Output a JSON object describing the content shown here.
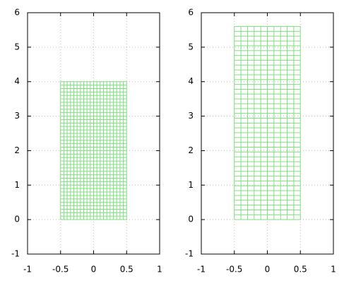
{
  "chart_data": [
    {
      "type": "mesh",
      "x": [
        -0.5,
        0.5
      ],
      "y": [
        0,
        4
      ],
      "cells": [
        20,
        40
      ],
      "color": "#80e080",
      "xlim": [
        -1,
        1
      ],
      "ylim": [
        -1,
        6
      ],
      "xticks": [
        -1,
        -0.5,
        0,
        0.5,
        1
      ],
      "yticks": [
        -1,
        0,
        1,
        2,
        3,
        4,
        5,
        6
      ],
      "grid": true
    },
    {
      "type": "mesh",
      "x": [
        -0.5,
        0.5
      ],
      "y": [
        0,
        5.6
      ],
      "cells": [
        10,
        40
      ],
      "color": "#80e080",
      "xlim": [
        -1,
        1
      ],
      "ylim": [
        -1,
        6
      ],
      "xticks": [
        -1,
        -0.5,
        0,
        0.5,
        1
      ],
      "yticks": [
        -1,
        0,
        1,
        2,
        3,
        4,
        5,
        6
      ],
      "grid": true
    }
  ]
}
